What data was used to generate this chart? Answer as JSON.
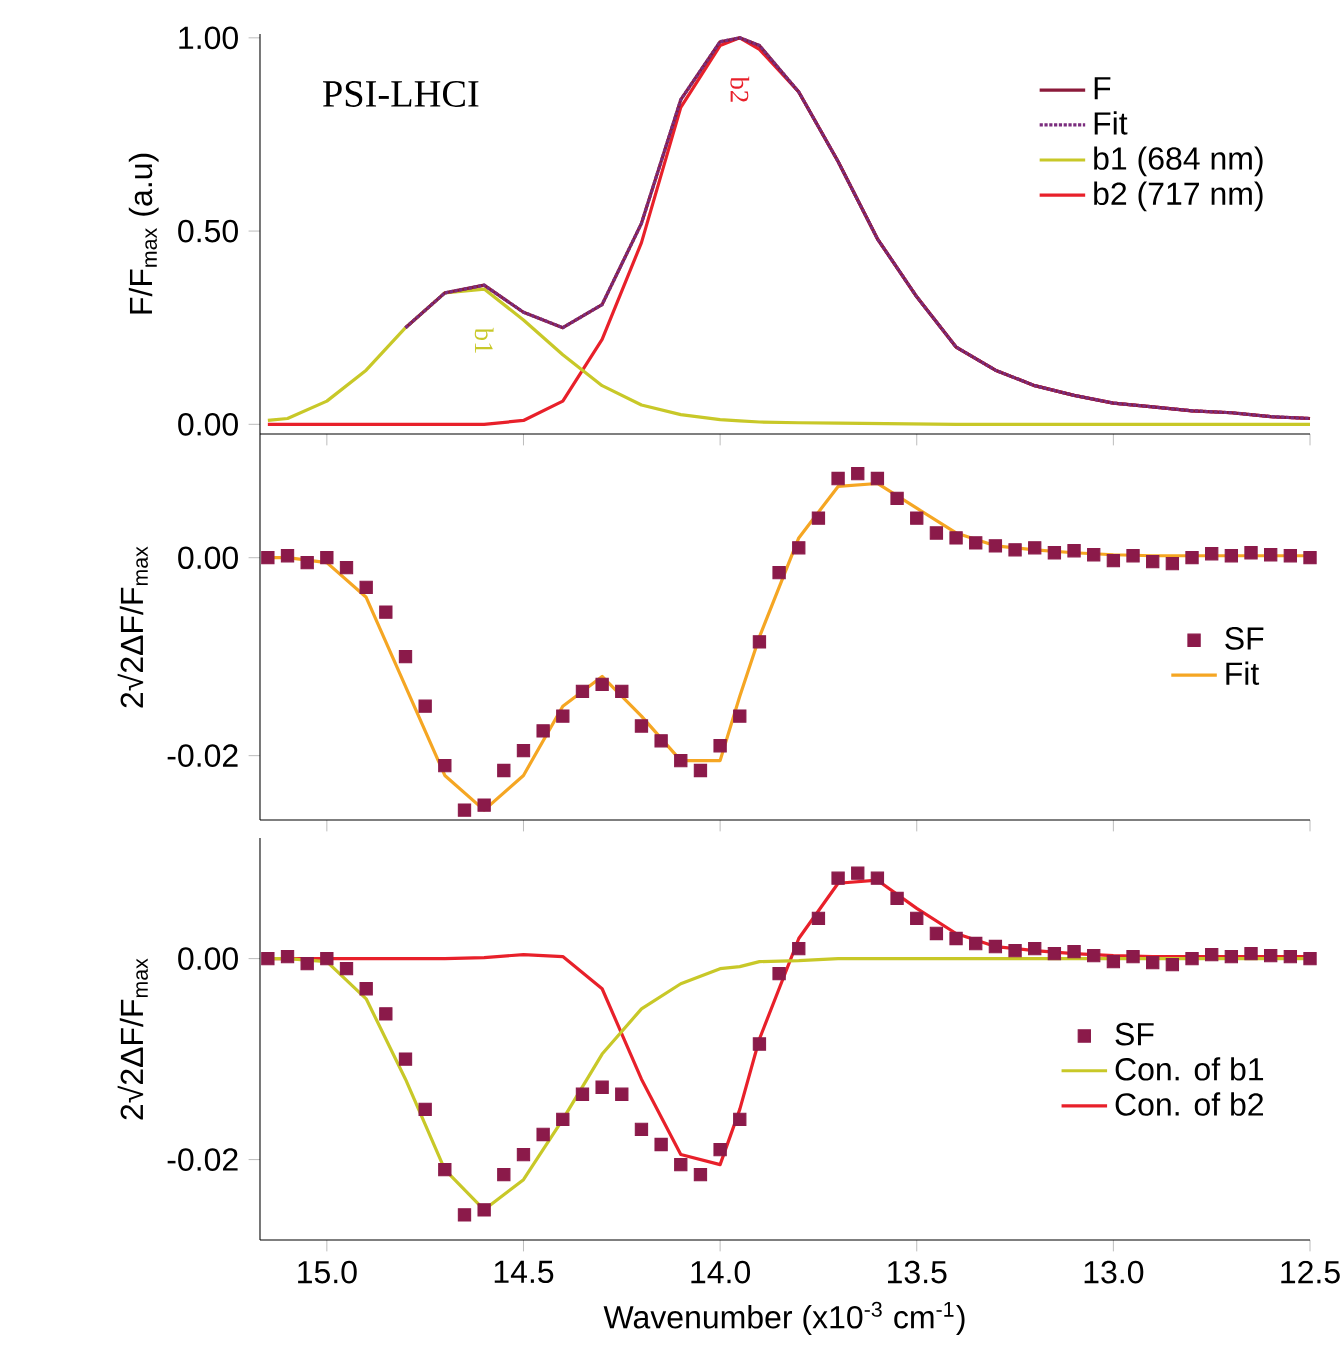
{
  "chart_data": [
    {
      "type": "line",
      "ylabel": "F/F$_{max}$ (a.u)",
      "annotations": [
        "PSI-LHCI",
        "b1",
        "b2"
      ],
      "x": [
        15.15,
        15.1,
        15.0,
        14.9,
        14.8,
        14.7,
        14.6,
        14.5,
        14.4,
        14.3,
        14.2,
        14.1,
        14.0,
        13.95,
        13.9,
        13.8,
        13.7,
        13.6,
        13.5,
        13.4,
        13.3,
        13.2,
        13.1,
        13.0,
        12.9,
        12.8,
        12.7,
        12.6,
        12.5
      ],
      "series": [
        {
          "name": "F",
          "color": "#8b1a3a",
          "values": [
            null,
            null,
            null,
            null,
            0.25,
            0.34,
            0.36,
            0.29,
            0.25,
            0.31,
            0.52,
            0.84,
            0.99,
            1.0,
            0.98,
            0.86,
            0.68,
            0.48,
            0.33,
            0.2,
            0.14,
            0.1,
            0.075,
            0.055,
            0.045,
            0.035,
            0.03,
            0.02,
            0.015
          ]
        },
        {
          "name": "Fit",
          "color": "#7b2d7e",
          "line_style": "dotted",
          "values": [
            null,
            null,
            null,
            null,
            0.25,
            0.34,
            0.36,
            0.29,
            0.25,
            0.31,
            0.52,
            0.84,
            0.99,
            1.0,
            0.98,
            0.86,
            0.68,
            0.48,
            0.33,
            0.2,
            0.14,
            0.1,
            0.075,
            0.055,
            0.045,
            0.035,
            0.03,
            0.02,
            0.015
          ]
        },
        {
          "name": "b1  (684 nm)",
          "color": "#c8c828",
          "values": [
            0.01,
            0.015,
            0.06,
            0.14,
            0.25,
            0.34,
            0.35,
            0.27,
            0.18,
            0.1,
            0.05,
            0.025,
            0.012,
            0.009,
            0.006,
            0.004,
            0.003,
            0.002,
            0.001,
            0.0,
            0.0,
            0.0,
            0.0,
            0.0,
            0.0,
            0.0,
            0.0,
            0.0,
            0.0
          ]
        },
        {
          "name": "b2 (717 nm)",
          "color": "#e8202a",
          "values": [
            0.0,
            0.0,
            0.0,
            0.0,
            0.0,
            0.0,
            0.0,
            0.01,
            0.06,
            0.22,
            0.47,
            0.82,
            0.98,
            1.0,
            0.97,
            0.86,
            0.68,
            0.48,
            0.33,
            0.2,
            0.14,
            0.1,
            0.075,
            0.055,
            0.045,
            0.035,
            0.03,
            0.02,
            0.015
          ]
        }
      ],
      "xlim": [
        15.17,
        12.5
      ],
      "xticks": [
        {
          "value": 15.0,
          "label": null
        },
        {
          "value": 14.5,
          "label": null
        },
        {
          "value": 14.0,
          "label": null
        },
        {
          "value": 13.5,
          "label": null
        },
        {
          "value": 13.0,
          "label": null
        },
        {
          "value": 12.5,
          "label": null
        }
      ],
      "ylim": [
        -0.025,
        1.01
      ],
      "yticks": [
        {
          "value": 0,
          "label": "0.00"
        },
        {
          "value": 0.5,
          "label": "0.50"
        },
        {
          "value": 1.0,
          "label": "1.00"
        }
      ],
      "legend": "top right",
      "tick_labels": "y"
    },
    {
      "type": "line",
      "ylabel": "2√2ΔF/F$_{max}$",
      "x": [
        15.15,
        15.1,
        15.0,
        14.9,
        14.8,
        14.7,
        14.6,
        14.5,
        14.4,
        14.3,
        14.2,
        14.1,
        14.0,
        13.95,
        13.9,
        13.8,
        13.7,
        13.6,
        13.5,
        13.4,
        13.3,
        13.2,
        13.1,
        13.0,
        12.9,
        12.8,
        12.7,
        12.6,
        12.5
      ],
      "series": [
        {
          "name": "SF",
          "type": "scatter",
          "marker": "square",
          "color": "#8b1a4a",
          "x": [
            15.15,
            15.1,
            15.05,
            15.0,
            14.95,
            14.9,
            14.85,
            14.8,
            14.75,
            14.7,
            14.65,
            14.6,
            14.55,
            14.5,
            14.45,
            14.4,
            14.35,
            14.3,
            14.25,
            14.2,
            14.15,
            14.1,
            14.05,
            14.0,
            13.95,
            13.9,
            13.85,
            13.8,
            13.75,
            13.7,
            13.65,
            13.6,
            13.55,
            13.5,
            13.45,
            13.4,
            13.35,
            13.3,
            13.25,
            13.2,
            13.15,
            13.1,
            13.05,
            13.0,
            12.95,
            12.9,
            12.85,
            12.8,
            12.75,
            12.7,
            12.65,
            12.6,
            12.55,
            12.5
          ],
          "values": [
            0.0,
            0.0002,
            -0.0005,
            0.0,
            -0.001,
            -0.003,
            -0.0055,
            -0.01,
            -0.015,
            -0.021,
            -0.0255,
            -0.025,
            -0.0215,
            -0.0195,
            -0.0175,
            -0.016,
            -0.0135,
            -0.0128,
            -0.0135,
            -0.017,
            -0.0185,
            -0.0205,
            -0.0215,
            -0.019,
            -0.016,
            -0.0085,
            -0.0015,
            0.001,
            0.004,
            0.008,
            0.0085,
            0.008,
            0.006,
            0.004,
            0.0025,
            0.002,
            0.0015,
            0.0012,
            0.0008,
            0.001,
            0.0005,
            0.0007,
            0.0003,
            -0.0003,
            0.0002,
            -0.0004,
            -0.0006,
            0.0,
            0.0004,
            0.0002,
            0.0005,
            0.0003,
            0.0002,
            0.0
          ]
        },
        {
          "name": "Fit",
          "color": "#f5a623",
          "values": [
            0.0,
            0.0,
            -0.0005,
            -0.004,
            -0.013,
            -0.022,
            -0.0255,
            -0.022,
            -0.015,
            -0.012,
            -0.016,
            -0.0205,
            -0.0205,
            -0.014,
            -0.008,
            0.002,
            0.0072,
            0.0075,
            0.005,
            0.0025,
            0.0012,
            0.0008,
            0.0005,
            0.0003,
            0.0002,
            0.0002,
            0.0002,
            0.0002,
            0.0002
          ]
        }
      ],
      "xlim": [
        15.17,
        12.5
      ],
      "xticks": [
        {
          "value": 15.0,
          "label": null
        },
        {
          "value": 14.5,
          "label": null
        },
        {
          "value": 14.0,
          "label": null
        },
        {
          "value": 13.5,
          "label": null
        },
        {
          "value": 13.0,
          "label": null
        },
        {
          "value": 12.5,
          "label": null
        }
      ],
      "ylim": [
        -0.0265,
        0.0125
      ],
      "yticks": [
        {
          "value": -0.02,
          "label": "-0.02"
        },
        {
          "value": 0,
          "label": "0.00"
        }
      ],
      "legend": "right",
      "tick_labels": "y"
    },
    {
      "type": "line",
      "ylabel": "2√2ΔF/F$_{max}$",
      "xlabel": "Wavenumber (x10$^{-3}$  cm$^{-1}$)",
      "x": [
        15.15,
        15.1,
        15.0,
        14.9,
        14.8,
        14.7,
        14.6,
        14.5,
        14.4,
        14.3,
        14.2,
        14.1,
        14.0,
        13.95,
        13.9,
        13.8,
        13.7,
        13.6,
        13.5,
        13.4,
        13.3,
        13.2,
        13.1,
        13.0,
        12.9,
        12.8,
        12.7,
        12.6,
        12.5
      ],
      "series": [
        {
          "name": "SF",
          "type": "scatter",
          "marker": "square",
          "color": "#8b1a4a",
          "x": [
            15.15,
            15.1,
            15.05,
            15.0,
            14.95,
            14.9,
            14.85,
            14.8,
            14.75,
            14.7,
            14.65,
            14.6,
            14.55,
            14.5,
            14.45,
            14.4,
            14.35,
            14.3,
            14.25,
            14.2,
            14.15,
            14.1,
            14.05,
            14.0,
            13.95,
            13.9,
            13.85,
            13.8,
            13.75,
            13.7,
            13.65,
            13.6,
            13.55,
            13.5,
            13.45,
            13.4,
            13.35,
            13.3,
            13.25,
            13.2,
            13.15,
            13.1,
            13.05,
            13.0,
            12.95,
            12.9,
            12.85,
            12.8,
            12.75,
            12.7,
            12.65,
            12.6,
            12.55,
            12.5
          ],
          "values": [
            0.0,
            0.0002,
            -0.0005,
            0.0,
            -0.001,
            -0.003,
            -0.0055,
            -0.01,
            -0.015,
            -0.021,
            -0.0255,
            -0.025,
            -0.0215,
            -0.0195,
            -0.0175,
            -0.016,
            -0.0135,
            -0.0128,
            -0.0135,
            -0.017,
            -0.0185,
            -0.0205,
            -0.0215,
            -0.019,
            -0.016,
            -0.0085,
            -0.0015,
            0.001,
            0.004,
            0.008,
            0.0085,
            0.008,
            0.006,
            0.004,
            0.0025,
            0.002,
            0.0015,
            0.0012,
            0.0008,
            0.001,
            0.0005,
            0.0007,
            0.0003,
            -0.0003,
            0.0002,
            -0.0004,
            -0.0006,
            0.0,
            0.0004,
            0.0002,
            0.0005,
            0.0003,
            0.0002,
            0.0
          ]
        },
        {
          "name": "Con. of b1",
          "color": "#c8c828",
          "values": [
            0.0,
            0.0,
            -0.0003,
            -0.004,
            -0.012,
            -0.021,
            -0.025,
            -0.022,
            -0.016,
            -0.0095,
            -0.005,
            -0.0025,
            -0.001,
            -0.0008,
            -0.0003,
            -0.0002,
            0.0,
            0.0,
            0.0,
            0.0,
            0.0,
            0.0,
            0.0,
            0.0,
            0.0,
            0.0,
            0.0,
            0.0,
            0.0
          ]
        },
        {
          "name": "Con. of b2",
          "color": "#e8202a",
          "values": [
            0.0,
            0.0,
            0.0,
            0.0,
            0.0,
            0.0,
            0.0001,
            0.0004,
            0.0002,
            -0.003,
            -0.012,
            -0.0195,
            -0.0205,
            -0.015,
            -0.008,
            0.002,
            0.0075,
            0.0078,
            0.005,
            0.0025,
            0.0012,
            0.0008,
            0.0005,
            0.0003,
            0.0002,
            0.0002,
            0.0002,
            0.0002,
            0.0002
          ]
        }
      ],
      "xlim": [
        15.17,
        12.5
      ],
      "xticks": [
        {
          "value": 15.0,
          "label": "15.0"
        },
        {
          "value": 14.5,
          "label": "14.5"
        },
        {
          "value": 14.0,
          "label": "14.0"
        },
        {
          "value": 13.5,
          "label": "13.5"
        },
        {
          "value": 13.0,
          "label": "13.0"
        },
        {
          "value": 12.5,
          "label": "12.5"
        }
      ],
      "ylim": [
        -0.028,
        0.012
      ],
      "yticks": [
        {
          "value": -0.02,
          "label": "-0.02"
        },
        {
          "value": 0,
          "label": "0.00"
        }
      ],
      "legend": "right"
    }
  ]
}
